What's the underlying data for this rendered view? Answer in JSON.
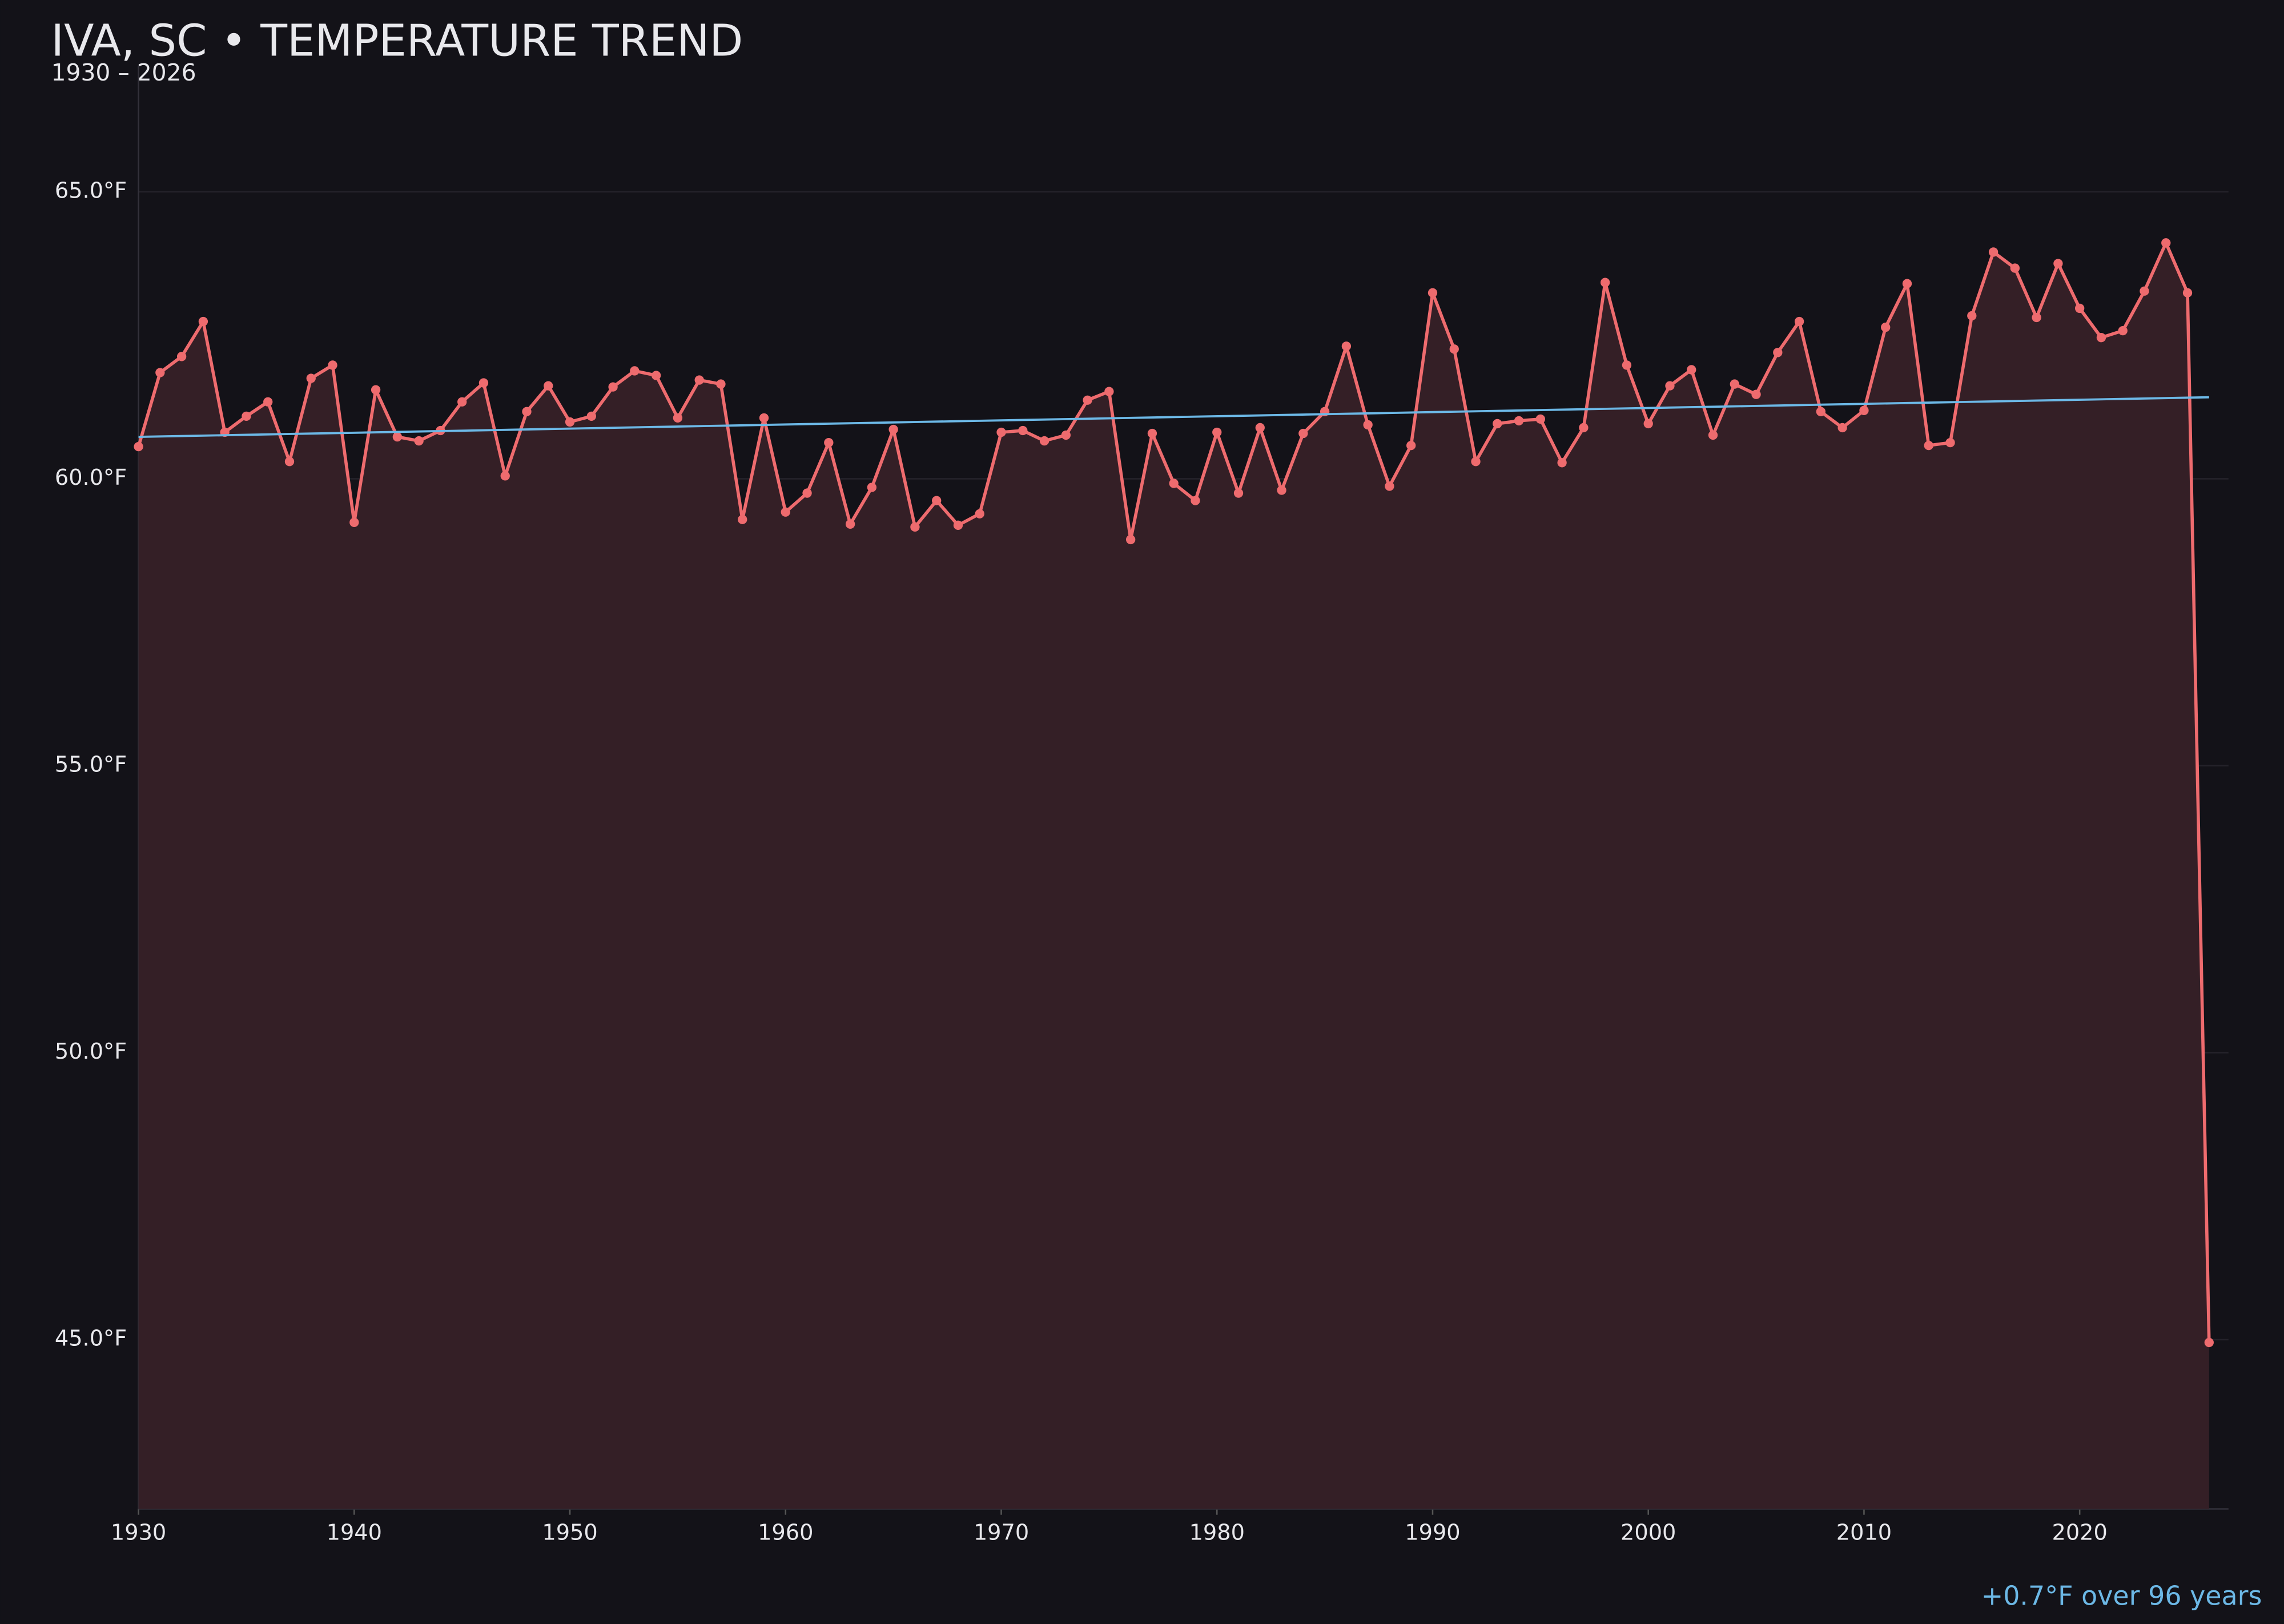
{
  "chart_data": {
    "type": "line",
    "title": "IVA, SC • TEMPERATURE TREND",
    "subtitle": "1930 – 2026",
    "annotation": "+0.7°F over 96 years",
    "x": [
      1930,
      1931,
      1932,
      1933,
      1934,
      1935,
      1936,
      1937,
      1938,
      1939,
      1940,
      1941,
      1942,
      1943,
      1944,
      1945,
      1946,
      1947,
      1948,
      1949,
      1950,
      1951,
      1952,
      1953,
      1954,
      1955,
      1956,
      1957,
      1958,
      1959,
      1960,
      1961,
      1962,
      1963,
      1964,
      1965,
      1966,
      1967,
      1968,
      1969,
      1970,
      1971,
      1972,
      1973,
      1974,
      1975,
      1976,
      1977,
      1978,
      1979,
      1980,
      1981,
      1982,
      1983,
      1984,
      1985,
      1986,
      1987,
      1988,
      1989,
      1990,
      1991,
      1992,
      1993,
      1994,
      1995,
      1996,
      1997,
      1998,
      1999,
      2000,
      2001,
      2002,
      2003,
      2004,
      2005,
      2006,
      2007,
      2008,
      2009,
      2010,
      2011,
      2012,
      2013,
      2014,
      2015,
      2016,
      2017,
      2018,
      2019,
      2020,
      2021,
      2022,
      2023,
      2024,
      2025,
      2026
    ],
    "series": [
      {
        "color": "#ee6b6e",
        "fill_color": "#341f26",
        "values": [
          60.56,
          61.85,
          62.13,
          62.74,
          60.81,
          61.09,
          61.34,
          60.3,
          61.75,
          61.98,
          59.24,
          61.55,
          60.73,
          60.66,
          60.84,
          61.34,
          61.67,
          60.05,
          61.17,
          61.62,
          60.99,
          61.09,
          61.6,
          61.88,
          61.8,
          61.06,
          61.72,
          61.65,
          59.29,
          61.06,
          59.42,
          59.75,
          60.63,
          59.21,
          59.85,
          60.86,
          59.16,
          59.62,
          59.19,
          59.39,
          60.81,
          60.84,
          60.66,
          60.76,
          61.37,
          61.52,
          58.94,
          60.79,
          59.92,
          59.62,
          60.81,
          59.75,
          60.89,
          59.8,
          60.79,
          61.17,
          62.31,
          60.94,
          59.87,
          60.58,
          63.24,
          62.26,
          60.3,
          60.96,
          61.01,
          61.04,
          60.28,
          60.89,
          63.42,
          61.98,
          60.96,
          61.62,
          61.9,
          60.76,
          61.65,
          61.47,
          62.2,
          62.74,
          61.17,
          60.89,
          61.19,
          62.64,
          63.4,
          60.58,
          60.63,
          62.84,
          63.95,
          63.67,
          62.81,
          63.75,
          62.97,
          62.46,
          62.58,
          63.27,
          64.11,
          63.24,
          44.95
        ]
      }
    ],
    "trend": {
      "color": "#6cb8e6",
      "x": [
        1930,
        2026
      ],
      "values": [
        60.73,
        61.42
      ]
    },
    "xlim": [
      1930,
      2026.9
    ],
    "ylim": [
      42.05,
      67.2
    ],
    "xticks": [
      1930,
      1940,
      1950,
      1960,
      1970,
      1980,
      1990,
      2000,
      2010,
      2020
    ],
    "yticks": [
      {
        "value": 45,
        "label": "45.0°F"
      },
      {
        "value": 50,
        "label": "50.0°F"
      },
      {
        "value": 55,
        "label": "55.0°F"
      },
      {
        "value": 60,
        "label": "60.0°F"
      },
      {
        "value": 65,
        "label": "65.0°F"
      }
    ],
    "grid": true
  }
}
